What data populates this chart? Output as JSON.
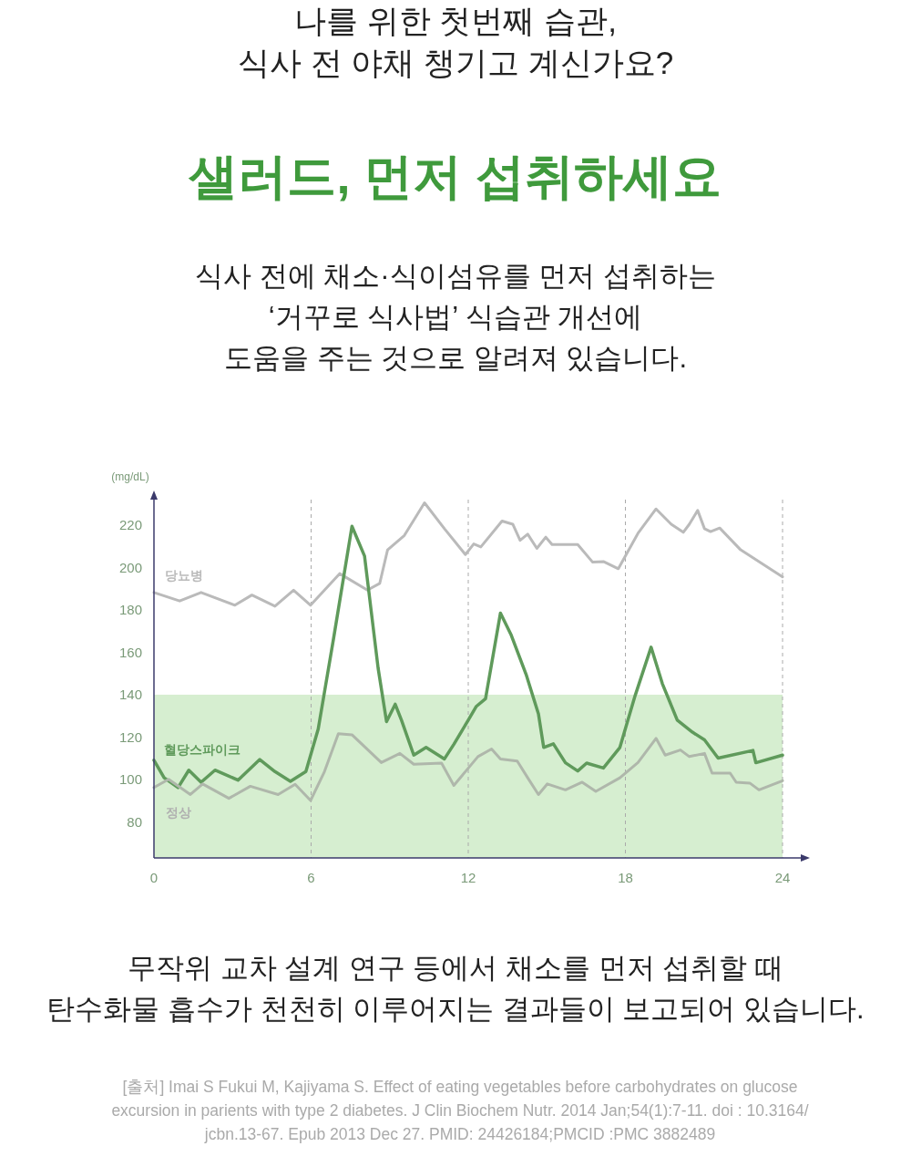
{
  "chart_data": {
    "type": "line",
    "title": "나를 위한 첫번째 습관,\n식사 전 야채 챙기고 계신가요?",
    "subtitle": "샐러드, 먼저 섭취하세요",
    "ylabel": "(mg/dL)",
    "annotations": [
      "식사 전에 채소·식이섬유를 먼저 섭취하는\n‘거꾸로 식사법’ 식습관 개선에\n도움을 주는 것으로 알려져 있습니다.",
      "무작위 교차 설계 연구 등에서 채소를 먼저 섭취할 때\n탄수화물 흡수가 천천히 이루어지는 결과들이 보고되어 있습니다.",
      "[출처] Imai S Fukui M, Kajiyama S. Effect of eating vegetables before carbohydrates on glucose\nexcursion in parients with type 2 diabetes. J Clin Biochem Nutr. 2014 Jan;54(1):7-11. doi : 10.3164/\njcbn.13-67. Epub 2013 Dec 27. PMID: 24426184;PMCID :PMC 3882489"
    ],
    "xlim": [
      0,
      24
    ],
    "xticks": [
      0,
      6,
      12,
      18,
      24
    ],
    "ylim": [
      63,
      232
    ],
    "yticks": [
      80,
      100,
      120,
      140,
      160,
      180,
      200,
      220
    ],
    "grid": "x",
    "legend": false,
    "marker": "none",
    "line_style": "solid",
    "bands": [
      {
        "axis": "y",
        "from": 63,
        "to": 140,
        "color": "#d6eed0"
      }
    ],
    "series": [
      {
        "name": "당뇨병",
        "color": "#bababa",
        "x": [
          0,
          0.98,
          1.8,
          3.09,
          3.74,
          4.62,
          5.33,
          5.98,
          7.09,
          8.15,
          8.62,
          8.92,
          9.56,
          10.33,
          11.09,
          11.89,
          12.21,
          12.48,
          13.29,
          13.7,
          13.98,
          14.27,
          14.62,
          14.96,
          15.2,
          16.18,
          16.75,
          17.16,
          17.73,
          18.48,
          19.17,
          19.75,
          20.21,
          20.44,
          20.76,
          21.02,
          21.25,
          21.6,
          22.4,
          24
        ],
        "values": [
          188.2,
          184.2,
          188.2,
          182.2,
          187,
          181.7,
          189.3,
          182.2,
          197.1,
          189.3,
          192.5,
          208.3,
          215.1,
          230.5,
          218.3,
          206.1,
          211.1,
          209.7,
          221.9,
          220.4,
          212.8,
          215.7,
          209,
          214.3,
          210.8,
          210.8,
          202.5,
          202.8,
          199.4,
          216.1,
          227.6,
          220.4,
          216.6,
          220.4,
          226.9,
          218.3,
          216.9,
          218.6,
          208.3,
          195.6
        ]
      },
      {
        "name": "혈당스파이크",
        "color": "#5f9a5b",
        "x": [
          0,
          0.39,
          0.92,
          1.33,
          1.8,
          2.33,
          3.21,
          4.04,
          4.62,
          5.21,
          5.8,
          6.27,
          6.86,
          7.56,
          8.04,
          8.56,
          8.88,
          9.21,
          9.45,
          9.92,
          10.39,
          11.09,
          11.45,
          12,
          12.31,
          12.66,
          13.23,
          13.64,
          14.21,
          14.68,
          14.88,
          15.25,
          15.71,
          16.18,
          16.52,
          17.16,
          17.79,
          18.37,
          18.98,
          19.41,
          19.98,
          20.56,
          21.02,
          21.54,
          22.87,
          22.98,
          24
        ],
        "values": [
          109.1,
          100.8,
          96.2,
          104.4,
          98.7,
          104.4,
          99.7,
          109.4,
          103.7,
          99.1,
          103.7,
          123.7,
          166.7,
          219.4,
          205.4,
          152.4,
          127.3,
          135.5,
          128,
          111.5,
          115.1,
          109.7,
          116.6,
          128,
          134.5,
          138.1,
          178.5,
          168.1,
          149.5,
          130.9,
          115.1,
          116.8,
          107.9,
          104,
          107.7,
          105.4,
          115.1,
          139.5,
          162.4,
          145.2,
          128,
          122.3,
          118.7,
          110.1,
          113.7,
          107.9,
          111.5
        ]
      },
      {
        "name": "정상",
        "color": "#afb7ab",
        "x": [
          0,
          0.56,
          1.39,
          1.86,
          2.86,
          3.68,
          4.74,
          5.39,
          5.98,
          6.51,
          7.04,
          7.56,
          8.68,
          9.39,
          9.92,
          10.98,
          11.45,
          12.37,
          12.89,
          13.23,
          13.87,
          14.27,
          14.68,
          15.02,
          15.71,
          16.35,
          16.87,
          17.79,
          18.48,
          19.17,
          19.52,
          20.1,
          20.44,
          21.02,
          21.31,
          22,
          22.23,
          22.75,
          23.1,
          24
        ],
        "values": [
          96.2,
          100.1,
          92.9,
          97.9,
          91.1,
          96.8,
          92.9,
          97.7,
          90.1,
          103.7,
          121.6,
          121.1,
          108,
          112.3,
          107.2,
          107.7,
          97.2,
          110.8,
          114.4,
          109.7,
          108.7,
          100.8,
          92.9,
          97.9,
          95.1,
          98.7,
          94.4,
          100.8,
          108,
          119.4,
          111.5,
          113.9,
          110.8,
          112.3,
          103,
          103,
          98.7,
          98.3,
          95.1,
          99.4
        ]
      }
    ]
  }
}
